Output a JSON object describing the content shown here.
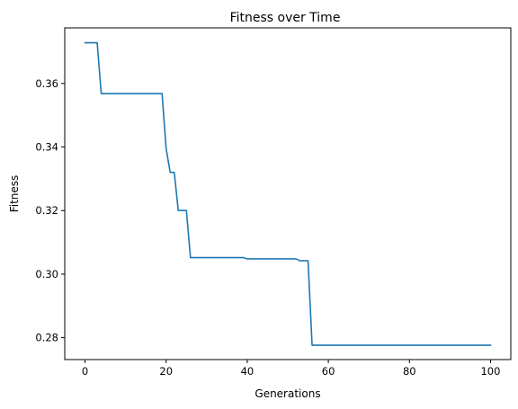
{
  "chart_data": {
    "type": "line",
    "title": "Fitness over Time",
    "xlabel": "Generations",
    "ylabel": "Fitness",
    "xlim": [
      -5,
      105
    ],
    "ylim": [
      0.2731,
      0.3775
    ],
    "x_ticks": [
      0,
      20,
      40,
      60,
      80,
      100
    ],
    "x_tick_labels": [
      "0",
      "20",
      "40",
      "60",
      "80",
      "100"
    ],
    "y_ticks": [
      0.28,
      0.3,
      0.32,
      0.34,
      0.36
    ],
    "y_tick_labels": [
      "0.28",
      "0.30",
      "0.32",
      "0.34",
      "0.36"
    ],
    "grid": false,
    "series": [
      {
        "color": "#1f77b4",
        "x": [
          0,
          3,
          4,
          19,
          20,
          21,
          22,
          23,
          25,
          26,
          39,
          40,
          52,
          53,
          55,
          56,
          57,
          100
        ],
        "y": [
          0.3728,
          0.3728,
          0.3568,
          0.3568,
          0.3395,
          0.332,
          0.332,
          0.32,
          0.32,
          0.3052,
          0.3052,
          0.3048,
          0.3048,
          0.3042,
          0.3042,
          0.2776,
          0.2776,
          0.2776
        ]
      }
    ]
  }
}
